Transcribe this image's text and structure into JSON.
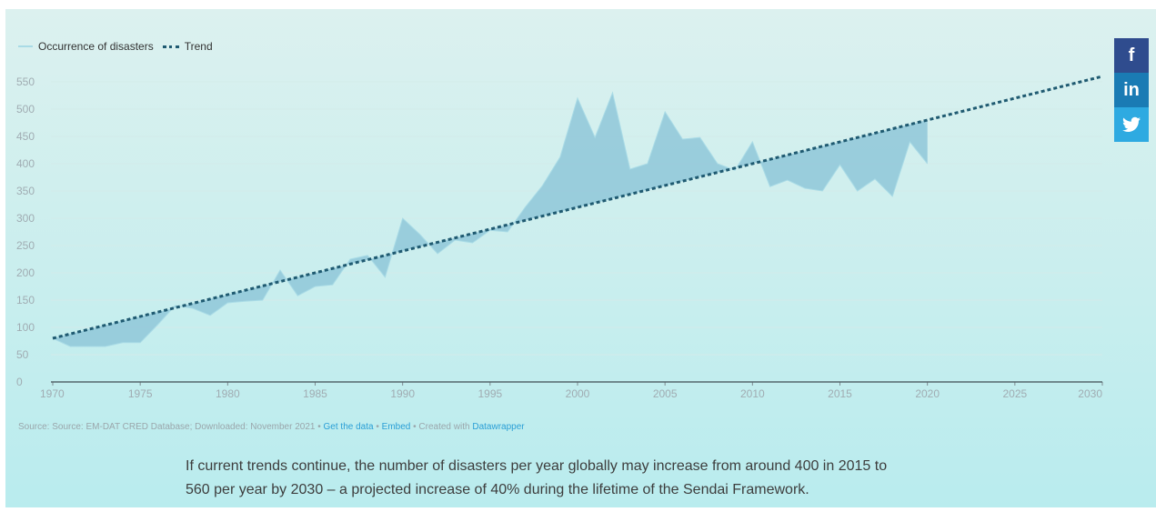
{
  "legend": {
    "series_label": "Occurrence of disasters",
    "trend_label": "Trend"
  },
  "source": {
    "text": "Source: Source: EM-DAT CRED Database; Downloaded: November 2021",
    "sep": "•",
    "get_data": "Get the data",
    "embed": "Embed",
    "created_with": "Created with",
    "datawrapper": "Datawrapper"
  },
  "caption": {
    "line1": "If current trends continue, the number of disasters per year globally may increase from around 400 in 2015 to",
    "line2": "560 per year by 2030 – a projected increase of 40% during the lifetime of the Sendai Framework."
  },
  "share": {
    "facebook": "f",
    "linkedin": "in",
    "twitter_icon": "twitter-bird-icon"
  },
  "colors": {
    "area": "#8fc7d8",
    "trend": "#1f5a71",
    "facebook": "#2f4c8e",
    "linkedin": "#1a7bb4",
    "twitter": "#2eaae1"
  },
  "chart_data": {
    "type": "area",
    "xlim": [
      1970,
      2030
    ],
    "ylim": [
      0,
      550
    ],
    "x_ticks": [
      1970,
      1975,
      1980,
      1985,
      1990,
      1995,
      2000,
      2005,
      2010,
      2015,
      2020,
      2025,
      2030
    ],
    "y_ticks": [
      0,
      50,
      100,
      150,
      200,
      250,
      300,
      350,
      400,
      450,
      500,
      550
    ],
    "grid": true,
    "legend_position": "top-left",
    "series": [
      {
        "name": "Occurrence of disasters",
        "x": [
          1970,
          1971,
          1972,
          1973,
          1974,
          1975,
          1976,
          1977,
          1978,
          1979,
          1980,
          1981,
          1982,
          1983,
          1984,
          1985,
          1986,
          1987,
          1988,
          1989,
          1990,
          1991,
          1992,
          1993,
          1994,
          1995,
          1996,
          1997,
          1998,
          1999,
          2000,
          2001,
          2002,
          2003,
          2004,
          2005,
          2006,
          2007,
          2008,
          2009,
          2010,
          2011,
          2012,
          2013,
          2014,
          2015,
          2016,
          2017,
          2018,
          2019,
          2020
        ],
        "values": [
          80,
          65,
          65,
          65,
          72,
          72,
          105,
          140,
          135,
          122,
          145,
          148,
          150,
          205,
          158,
          175,
          178,
          225,
          232,
          192,
          300,
          270,
          235,
          260,
          255,
          278,
          275,
          320,
          360,
          412,
          520,
          448,
          530,
          390,
          400,
          495,
          445,
          448,
          400,
          388,
          440,
          358,
          370,
          355,
          350,
          398,
          350,
          372,
          340,
          440,
          400
        ]
      },
      {
        "name": "Trend",
        "x": [
          1970,
          2030
        ],
        "values": [
          80,
          560
        ]
      }
    ]
  }
}
